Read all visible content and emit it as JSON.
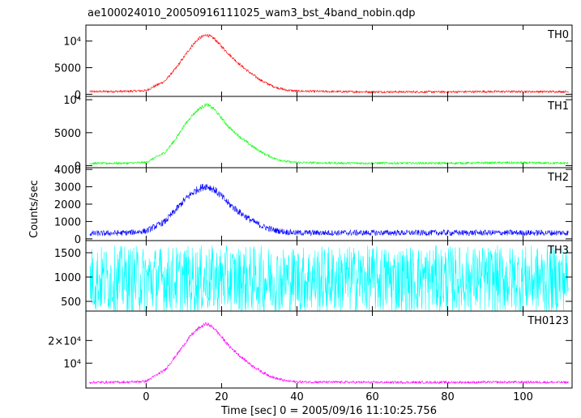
{
  "chart_data": {
    "type": "line",
    "title": "ae100024010_20050916111025_wam3_bst_4band_nobin.qdp",
    "xlabel": "Time [sec] 0 = 2005/09/16 11:10:25.756",
    "ylabel": "Counts/sec",
    "xlim": [
      -16,
      113
    ],
    "x_ticks": [
      {
        "value": 0,
        "label": "0"
      },
      {
        "value": 20,
        "label": "20"
      },
      {
        "value": 40,
        "label": "40"
      },
      {
        "value": 60,
        "label": "60"
      },
      {
        "value": 80,
        "label": "80"
      },
      {
        "value": 100,
        "label": "100"
      }
    ],
    "panels": [
      {
        "name": "TH0",
        "color": "#ff0000",
        "ylim": [
          -400,
          13000
        ],
        "y_ticks": [
          {
            "value": 0,
            "label": "0"
          },
          {
            "value": 5000,
            "label": "5000"
          },
          {
            "value": 10000,
            "label": "10⁴"
          }
        ],
        "points": [
          [
            -15,
            500
          ],
          [
            -5,
            550
          ],
          [
            0,
            700
          ],
          [
            5,
            2500
          ],
          [
            8,
            5000
          ],
          [
            10,
            7000
          ],
          [
            12,
            9000
          ],
          [
            14,
            10500
          ],
          [
            16,
            11200
          ],
          [
            18,
            10500
          ],
          [
            20,
            9000
          ],
          [
            22,
            7500
          ],
          [
            25,
            5500
          ],
          [
            28,
            3800
          ],
          [
            31,
            2400
          ],
          [
            34,
            1400
          ],
          [
            37,
            800
          ],
          [
            40,
            600
          ],
          [
            50,
            500
          ],
          [
            60,
            450
          ],
          [
            70,
            450
          ],
          [
            80,
            450
          ],
          [
            90,
            500
          ],
          [
            100,
            500
          ],
          [
            112,
            500
          ]
        ],
        "noise": 500
      },
      {
        "name": "TH1",
        "color": "#00ff00",
        "ylim": [
          -300,
          10500
        ],
        "y_ticks": [
          {
            "value": 0,
            "label": "0"
          },
          {
            "value": 5000,
            "label": "5000"
          },
          {
            "value": 10000,
            "label": "10⁴"
          }
        ],
        "points": [
          [
            -15,
            350
          ],
          [
            -5,
            380
          ],
          [
            0,
            500
          ],
          [
            5,
            2000
          ],
          [
            8,
            4200
          ],
          [
            10,
            6000
          ],
          [
            12,
            7500
          ],
          [
            14,
            8600
          ],
          [
            16,
            9300
          ],
          [
            18,
            8600
          ],
          [
            20,
            7200
          ],
          [
            22,
            5800
          ],
          [
            25,
            4300
          ],
          [
            28,
            3000
          ],
          [
            31,
            1900
          ],
          [
            34,
            1100
          ],
          [
            37,
            650
          ],
          [
            40,
            480
          ],
          [
            50,
            400
          ],
          [
            60,
            380
          ],
          [
            80,
            380
          ],
          [
            95,
            450
          ],
          [
            112,
            380
          ]
        ],
        "noise": 400
      },
      {
        "name": "TH2",
        "color": "#0000ff",
        "ylim": [
          -100,
          4100
        ],
        "y_ticks": [
          {
            "value": 0,
            "label": "0"
          },
          {
            "value": 1000,
            "label": "1000"
          },
          {
            "value": 2000,
            "label": "2000"
          },
          {
            "value": 3000,
            "label": "3000"
          },
          {
            "value": 4000,
            "label": "4000"
          }
        ],
        "points": [
          [
            -15,
            300
          ],
          [
            -5,
            350
          ],
          [
            0,
            450
          ],
          [
            5,
            1000
          ],
          [
            8,
            1700
          ],
          [
            10,
            2200
          ],
          [
            12,
            2600
          ],
          [
            14,
            2900
          ],
          [
            16,
            3050
          ],
          [
            18,
            2850
          ],
          [
            20,
            2450
          ],
          [
            22,
            2000
          ],
          [
            25,
            1500
          ],
          [
            28,
            1050
          ],
          [
            31,
            700
          ],
          [
            34,
            500
          ],
          [
            37,
            400
          ],
          [
            40,
            350
          ],
          [
            50,
            350
          ],
          [
            60,
            350
          ],
          [
            80,
            350
          ],
          [
            100,
            350
          ],
          [
            112,
            350
          ]
        ],
        "noise": 380
      },
      {
        "name": "TH3",
        "color": "#00ffff",
        "ylim": [
          300,
          1750
        ],
        "y_ticks": [
          {
            "value": 500,
            "label": "500"
          },
          {
            "value": 1000,
            "label": "1000"
          },
          {
            "value": 1500,
            "label": "1500"
          }
        ],
        "points": [
          [
            -15,
            950
          ],
          [
            0,
            950
          ],
          [
            20,
            950
          ],
          [
            40,
            950
          ],
          [
            60,
            950
          ],
          [
            80,
            950
          ],
          [
            100,
            950
          ],
          [
            112,
            950
          ]
        ],
        "noise": 700
      },
      {
        "name": "TH0123",
        "color": "#ff00ff",
        "ylim": [
          -1000,
          33000
        ],
        "y_ticks": [
          {
            "value": 10000,
            "label": "10⁴"
          },
          {
            "value": 20000,
            "label": "2×10⁴"
          }
        ],
        "points": [
          [
            -15,
            1500
          ],
          [
            -5,
            1600
          ],
          [
            0,
            2000
          ],
          [
            5,
            7000
          ],
          [
            8,
            13500
          ],
          [
            10,
            18000
          ],
          [
            12,
            22500
          ],
          [
            14,
            25500
          ],
          [
            16,
            27500
          ],
          [
            18,
            25500
          ],
          [
            20,
            21500
          ],
          [
            22,
            17500
          ],
          [
            25,
            13000
          ],
          [
            28,
            9000
          ],
          [
            31,
            5800
          ],
          [
            34,
            3500
          ],
          [
            37,
            2200
          ],
          [
            40,
            1700
          ],
          [
            50,
            1600
          ],
          [
            60,
            1500
          ],
          [
            80,
            1500
          ],
          [
            100,
            1600
          ],
          [
            112,
            1500
          ]
        ],
        "noise": 1300
      }
    ]
  }
}
